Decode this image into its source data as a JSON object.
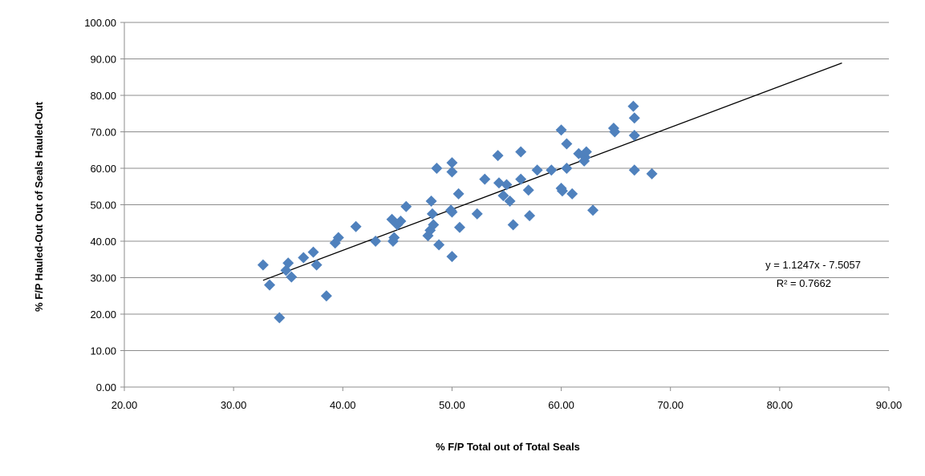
{
  "chart_data": {
    "type": "scatter",
    "xlabel": "% F/P Total out of Total Seals",
    "ylabel": "% F/P Hauled-Out Out of Seals Hauled-Out",
    "xlim": [
      20,
      90
    ],
    "ylim": [
      0,
      100
    ],
    "x_ticks": [
      "20.00",
      "30.00",
      "40.00",
      "50.00",
      "60.00",
      "70.00",
      "80.00",
      "90.00"
    ],
    "y_ticks": [
      "0.00",
      "10.00",
      "20.00",
      "30.00",
      "40.00",
      "50.00",
      "60.00",
      "70.00",
      "80.00",
      "90.00",
      "100.00"
    ],
    "grid": "horizontal",
    "marker_color": "#4f81bd",
    "trendline": {
      "slope": 1.1247,
      "intercept": -7.5057,
      "x_range": [
        32.7,
        85.7
      ],
      "equation": "y = 1.1247x - 7.5057",
      "r_squared": "R² = 0.7662"
    },
    "points": [
      [
        32.7,
        33.5
      ],
      [
        33.3,
        28.0
      ],
      [
        34.2,
        19.0
      ],
      [
        35.0,
        34.0
      ],
      [
        34.8,
        32.0
      ],
      [
        35.3,
        30.2
      ],
      [
        36.4,
        35.5
      ],
      [
        37.3,
        37.0
      ],
      [
        37.6,
        33.5
      ],
      [
        38.5,
        25.0
      ],
      [
        39.3,
        39.5
      ],
      [
        39.6,
        41.0
      ],
      [
        41.2,
        44.0
      ],
      [
        43.0,
        40.0
      ],
      [
        44.5,
        46.0
      ],
      [
        44.6,
        40.0
      ],
      [
        44.7,
        41.0
      ],
      [
        45.0,
        44.5
      ],
      [
        45.3,
        45.5
      ],
      [
        45.8,
        49.5
      ],
      [
        47.8,
        41.5
      ],
      [
        48.0,
        43.0
      ],
      [
        48.1,
        51.0
      ],
      [
        48.2,
        47.5
      ],
      [
        48.3,
        44.5
      ],
      [
        48.6,
        60.0
      ],
      [
        48.8,
        39.0
      ],
      [
        49.9,
        48.5
      ],
      [
        50.0,
        48.0
      ],
      [
        50.0,
        35.8
      ],
      [
        50.0,
        61.5
      ],
      [
        50.0,
        59.0
      ],
      [
        50.6,
        53.0
      ],
      [
        50.7,
        43.8
      ],
      [
        52.3,
        47.5
      ],
      [
        53.0,
        57.0
      ],
      [
        54.2,
        63.5
      ],
      [
        54.3,
        56.0
      ],
      [
        54.7,
        52.5
      ],
      [
        55.0,
        55.5
      ],
      [
        55.3,
        51.0
      ],
      [
        55.6,
        44.5
      ],
      [
        56.3,
        64.5
      ],
      [
        56.3,
        57.0
      ],
      [
        57.0,
        54.0
      ],
      [
        57.1,
        47.0
      ],
      [
        57.8,
        59.5
      ],
      [
        59.1,
        59.5
      ],
      [
        60.0,
        70.5
      ],
      [
        60.0,
        54.5
      ],
      [
        60.1,
        53.8
      ],
      [
        60.5,
        60.0
      ],
      [
        60.5,
        66.7
      ],
      [
        61.0,
        53.0
      ],
      [
        61.6,
        64.0
      ],
      [
        62.1,
        62.0
      ],
      [
        62.2,
        63.0
      ],
      [
        62.3,
        64.5
      ],
      [
        62.9,
        48.5
      ],
      [
        64.8,
        71.0
      ],
      [
        64.9,
        70.0
      ],
      [
        66.6,
        77.0
      ],
      [
        66.7,
        73.8
      ],
      [
        66.7,
        69.0
      ],
      [
        66.7,
        59.5
      ],
      [
        68.3,
        58.5
      ]
    ]
  }
}
